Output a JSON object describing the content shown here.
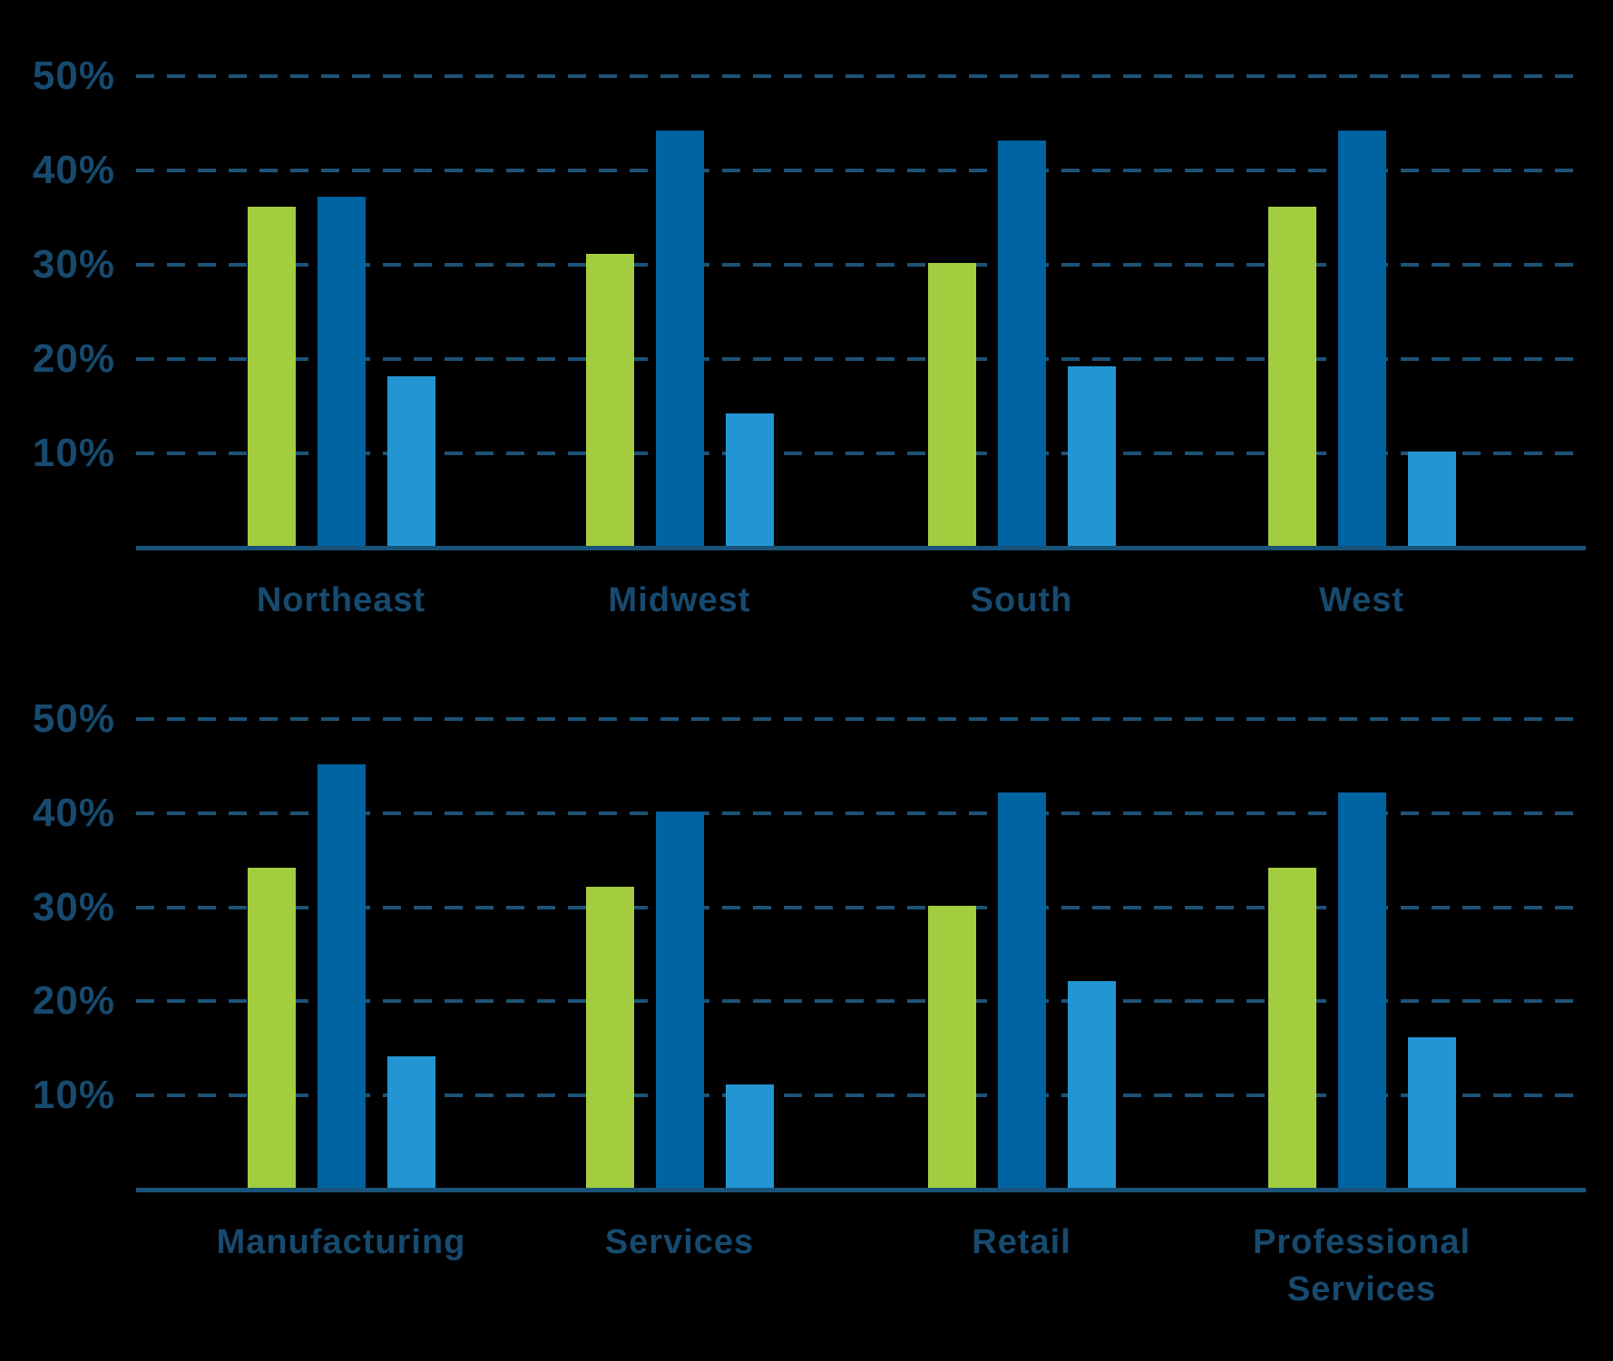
{
  "page": {
    "background": "#000000"
  },
  "colors": {
    "series_green": "#a3cd3e",
    "series_dark_blue": "#0063a2",
    "series_light_blue": "#2395d3",
    "axis_text": "#174a6e",
    "gridline": "#1e5276",
    "axis_line": "#1a537a"
  },
  "chart_data": [
    {
      "type": "bar",
      "title": "",
      "categories": [
        "Northeast",
        "Midwest",
        "South",
        "West"
      ],
      "series": [
        {
          "name": "green-series",
          "color": "#a3cd3e",
          "values": [
            36,
            31,
            30,
            36
          ]
        },
        {
          "name": "dark-blue-series",
          "color": "#0063a2",
          "values": [
            37,
            44,
            43,
            44
          ]
        },
        {
          "name": "light-blue-series",
          "color": "#2395d3",
          "values": [
            18,
            14,
            19,
            10
          ]
        }
      ],
      "xlabel": "",
      "ylabel": "",
      "ylim": [
        0,
        50
      ],
      "ytick_labels": [
        "50%",
        "40%",
        "30%",
        "20%",
        "10%"
      ],
      "grid": "horizontal-dashed",
      "legend": "none"
    },
    {
      "type": "bar",
      "title": "",
      "categories": [
        "Manufacturing",
        "Services",
        "Retail",
        "Professional Services"
      ],
      "series": [
        {
          "name": "green-series",
          "color": "#a3cd3e",
          "values": [
            34,
            32,
            30,
            34
          ]
        },
        {
          "name": "dark-blue-series",
          "color": "#0063a2",
          "values": [
            45,
            40,
            42,
            42
          ]
        },
        {
          "name": "light-blue-series",
          "color": "#2395d3",
          "values": [
            14,
            11,
            22,
            16
          ]
        }
      ],
      "xlabel": "",
      "ylabel": "",
      "ylim": [
        0,
        50
      ],
      "ytick_labels": [
        "50%",
        "40%",
        "30%",
        "20%",
        "10%"
      ],
      "grid": "horizontal-dashed",
      "legend": "none"
    }
  ]
}
